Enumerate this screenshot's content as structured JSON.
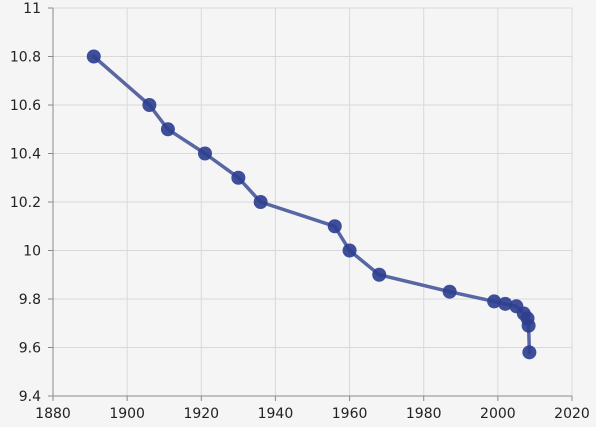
{
  "chart_data": {
    "type": "line",
    "title": "",
    "xlabel": "",
    "ylabel": "",
    "xlim": [
      1880,
      2020
    ],
    "ylim": [
      9.4,
      11
    ],
    "x_ticks": [
      1880,
      1900,
      1920,
      1940,
      1960,
      1980,
      2000,
      2020
    ],
    "x_tick_labels": [
      "1880",
      "1900",
      "1920",
      "1940",
      "1960",
      "1980",
      "2000",
      "2020"
    ],
    "y_ticks": [
      9.4,
      9.6,
      9.8,
      10,
      10.2,
      10.4,
      10.6,
      10.8,
      11
    ],
    "y_tick_labels": [
      "9.4",
      "9.6",
      "9.8",
      "10",
      "10.2",
      "10.4",
      "10.6",
      "10.8",
      "11"
    ],
    "grid": true,
    "legend": "none",
    "series": [
      {
        "color": "#2e3f8f",
        "x": [
          1891,
          1906,
          1911,
          1921,
          1930,
          1936,
          1956,
          1960,
          1968,
          1987,
          1999,
          2002,
          2005,
          2007,
          2008,
          2008.3,
          2008.5
        ],
        "y": [
          10.8,
          10.6,
          10.5,
          10.4,
          10.3,
          10.2,
          10.1,
          10.0,
          9.9,
          9.83,
          9.79,
          9.78,
          9.77,
          9.74,
          9.72,
          9.69,
          9.58
        ]
      }
    ]
  },
  "colors": {
    "background": "#f5f5f5",
    "grid": "#d9d9d9",
    "axis": "#8a8a8a",
    "line": "#5866a3",
    "marker": "#2e3f8f"
  }
}
